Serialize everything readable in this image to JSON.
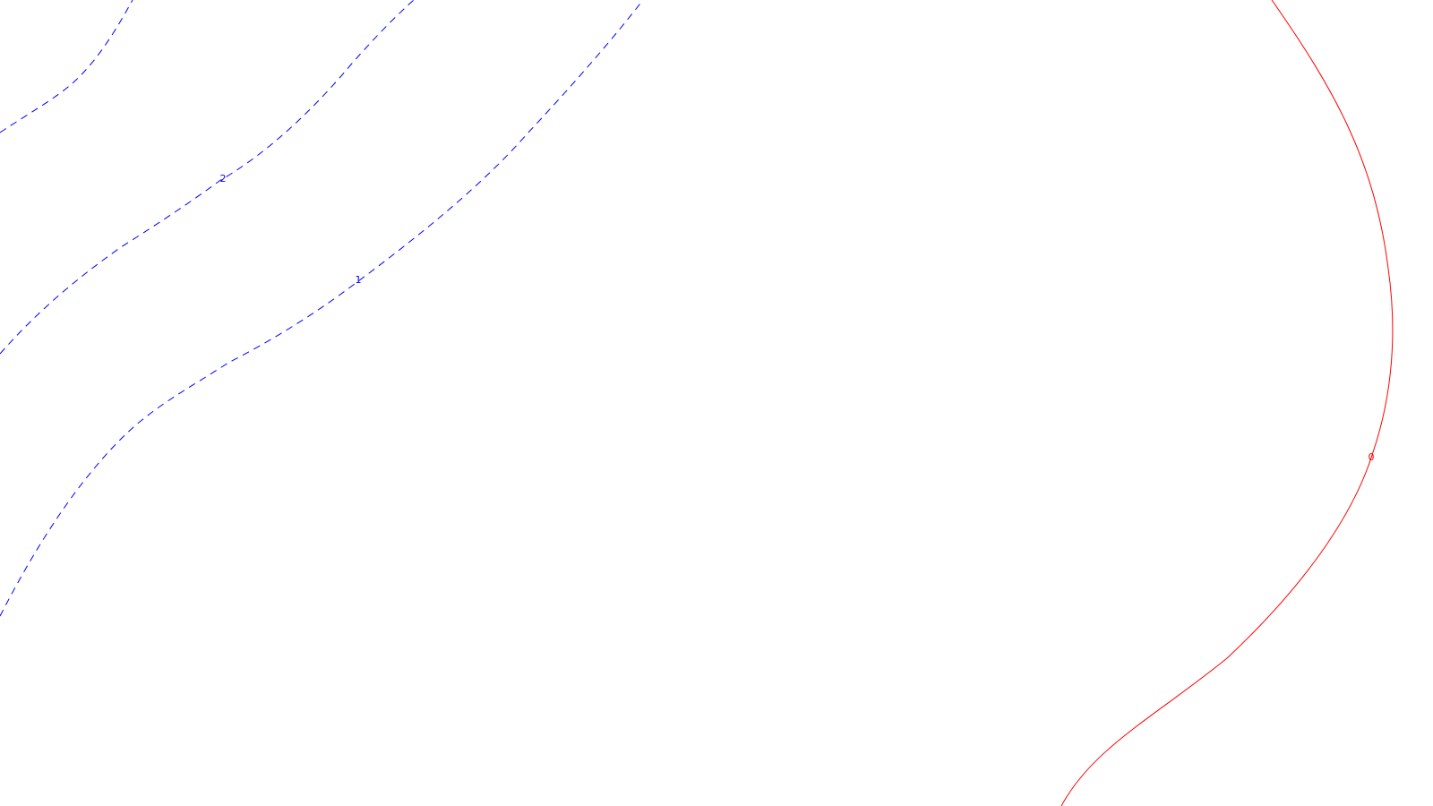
{
  "contours": [
    {
      "id": "level-2",
      "label": "2",
      "style": "dashed",
      "color": "#0000ff"
    },
    {
      "id": "level-1",
      "label": "1",
      "style": "dashed",
      "color": "#0000ff"
    },
    {
      "id": "level-2-partial",
      "label": "",
      "style": "dashed",
      "color": "#0000ff"
    },
    {
      "id": "level-0",
      "label": "0",
      "style": "solid",
      "color": "#ff0000"
    }
  ]
}
